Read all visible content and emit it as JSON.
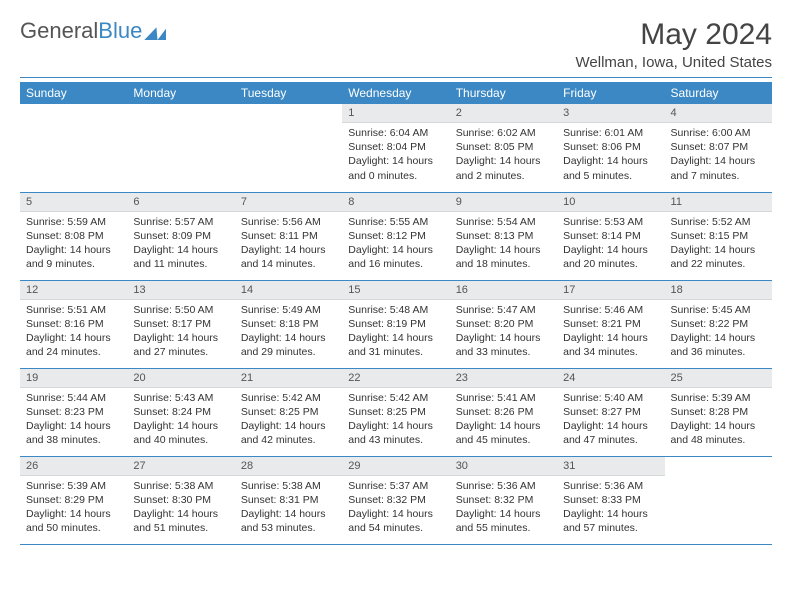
{
  "logo": {
    "part1": "General",
    "part2": "Blue"
  },
  "title": "May 2024",
  "location": "Wellman, Iowa, United States",
  "colors": {
    "brand": "#3b88c4",
    "day_header_bg": "#e9eaec",
    "text": "#333333",
    "background": "#ffffff"
  },
  "weekdays": [
    "Sunday",
    "Monday",
    "Tuesday",
    "Wednesday",
    "Thursday",
    "Friday",
    "Saturday"
  ],
  "weeks": [
    [
      null,
      null,
      null,
      {
        "n": "1",
        "sunrise": "6:04 AM",
        "sunset": "8:04 PM",
        "daylight": "14 hours and 0 minutes."
      },
      {
        "n": "2",
        "sunrise": "6:02 AM",
        "sunset": "8:05 PM",
        "daylight": "14 hours and 2 minutes."
      },
      {
        "n": "3",
        "sunrise": "6:01 AM",
        "sunset": "8:06 PM",
        "daylight": "14 hours and 5 minutes."
      },
      {
        "n": "4",
        "sunrise": "6:00 AM",
        "sunset": "8:07 PM",
        "daylight": "14 hours and 7 minutes."
      }
    ],
    [
      {
        "n": "5",
        "sunrise": "5:59 AM",
        "sunset": "8:08 PM",
        "daylight": "14 hours and 9 minutes."
      },
      {
        "n": "6",
        "sunrise": "5:57 AM",
        "sunset": "8:09 PM",
        "daylight": "14 hours and 11 minutes."
      },
      {
        "n": "7",
        "sunrise": "5:56 AM",
        "sunset": "8:11 PM",
        "daylight": "14 hours and 14 minutes."
      },
      {
        "n": "8",
        "sunrise": "5:55 AM",
        "sunset": "8:12 PM",
        "daylight": "14 hours and 16 minutes."
      },
      {
        "n": "9",
        "sunrise": "5:54 AM",
        "sunset": "8:13 PM",
        "daylight": "14 hours and 18 minutes."
      },
      {
        "n": "10",
        "sunrise": "5:53 AM",
        "sunset": "8:14 PM",
        "daylight": "14 hours and 20 minutes."
      },
      {
        "n": "11",
        "sunrise": "5:52 AM",
        "sunset": "8:15 PM",
        "daylight": "14 hours and 22 minutes."
      }
    ],
    [
      {
        "n": "12",
        "sunrise": "5:51 AM",
        "sunset": "8:16 PM",
        "daylight": "14 hours and 24 minutes."
      },
      {
        "n": "13",
        "sunrise": "5:50 AM",
        "sunset": "8:17 PM",
        "daylight": "14 hours and 27 minutes."
      },
      {
        "n": "14",
        "sunrise": "5:49 AM",
        "sunset": "8:18 PM",
        "daylight": "14 hours and 29 minutes."
      },
      {
        "n": "15",
        "sunrise": "5:48 AM",
        "sunset": "8:19 PM",
        "daylight": "14 hours and 31 minutes."
      },
      {
        "n": "16",
        "sunrise": "5:47 AM",
        "sunset": "8:20 PM",
        "daylight": "14 hours and 33 minutes."
      },
      {
        "n": "17",
        "sunrise": "5:46 AM",
        "sunset": "8:21 PM",
        "daylight": "14 hours and 34 minutes."
      },
      {
        "n": "18",
        "sunrise": "5:45 AM",
        "sunset": "8:22 PM",
        "daylight": "14 hours and 36 minutes."
      }
    ],
    [
      {
        "n": "19",
        "sunrise": "5:44 AM",
        "sunset": "8:23 PM",
        "daylight": "14 hours and 38 minutes."
      },
      {
        "n": "20",
        "sunrise": "5:43 AM",
        "sunset": "8:24 PM",
        "daylight": "14 hours and 40 minutes."
      },
      {
        "n": "21",
        "sunrise": "5:42 AM",
        "sunset": "8:25 PM",
        "daylight": "14 hours and 42 minutes."
      },
      {
        "n": "22",
        "sunrise": "5:42 AM",
        "sunset": "8:25 PM",
        "daylight": "14 hours and 43 minutes."
      },
      {
        "n": "23",
        "sunrise": "5:41 AM",
        "sunset": "8:26 PM",
        "daylight": "14 hours and 45 minutes."
      },
      {
        "n": "24",
        "sunrise": "5:40 AM",
        "sunset": "8:27 PM",
        "daylight": "14 hours and 47 minutes."
      },
      {
        "n": "25",
        "sunrise": "5:39 AM",
        "sunset": "8:28 PM",
        "daylight": "14 hours and 48 minutes."
      }
    ],
    [
      {
        "n": "26",
        "sunrise": "5:39 AM",
        "sunset": "8:29 PM",
        "daylight": "14 hours and 50 minutes."
      },
      {
        "n": "27",
        "sunrise": "5:38 AM",
        "sunset": "8:30 PM",
        "daylight": "14 hours and 51 minutes."
      },
      {
        "n": "28",
        "sunrise": "5:38 AM",
        "sunset": "8:31 PM",
        "daylight": "14 hours and 53 minutes."
      },
      {
        "n": "29",
        "sunrise": "5:37 AM",
        "sunset": "8:32 PM",
        "daylight": "14 hours and 54 minutes."
      },
      {
        "n": "30",
        "sunrise": "5:36 AM",
        "sunset": "8:32 PM",
        "daylight": "14 hours and 55 minutes."
      },
      {
        "n": "31",
        "sunrise": "5:36 AM",
        "sunset": "8:33 PM",
        "daylight": "14 hours and 57 minutes."
      },
      null
    ]
  ],
  "labels": {
    "sunrise": "Sunrise: ",
    "sunset": "Sunset: ",
    "daylight": "Daylight: "
  }
}
